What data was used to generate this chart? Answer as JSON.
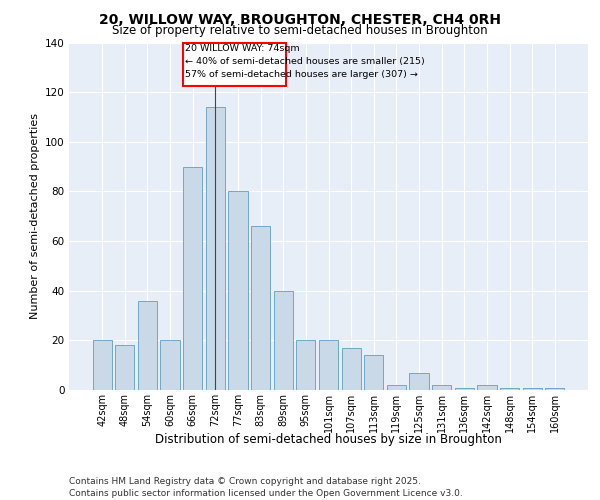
{
  "title1": "20, WILLOW WAY, BROUGHTON, CHESTER, CH4 0RH",
  "title2": "Size of property relative to semi-detached houses in Broughton",
  "xlabel": "Distribution of semi-detached houses by size in Broughton",
  "ylabel": "Number of semi-detached properties",
  "categories": [
    "42sqm",
    "48sqm",
    "54sqm",
    "60sqm",
    "66sqm",
    "72sqm",
    "77sqm",
    "83sqm",
    "89sqm",
    "95sqm",
    "101sqm",
    "107sqm",
    "113sqm",
    "119sqm",
    "125sqm",
    "131sqm",
    "136sqm",
    "142sqm",
    "148sqm",
    "154sqm",
    "160sqm"
  ],
  "values": [
    20,
    18,
    36,
    20,
    90,
    114,
    80,
    66,
    40,
    20,
    20,
    17,
    14,
    2,
    7,
    2,
    1,
    2,
    1,
    1,
    1
  ],
  "bar_color": "#c9d9e8",
  "bar_edge_color": "#6fa8c8",
  "background_color": "#e8eef8",
  "grid_color": "#ffffff",
  "annotation_text": "20 WILLOW WAY: 74sqm\n← 40% of semi-detached houses are smaller (215)\n57% of semi-detached houses are larger (307) →",
  "ylim": [
    0,
    140
  ],
  "yticks": [
    0,
    20,
    40,
    60,
    80,
    100,
    120,
    140
  ],
  "footer": "Contains HM Land Registry data © Crown copyright and database right 2025.\nContains public sector information licensed under the Open Government Licence v3.0.",
  "title1_fontsize": 10,
  "title2_fontsize": 8.5,
  "xlabel_fontsize": 8.5,
  "ylabel_fontsize": 8,
  "footer_fontsize": 6.5,
  "tick_fontsize": 7
}
